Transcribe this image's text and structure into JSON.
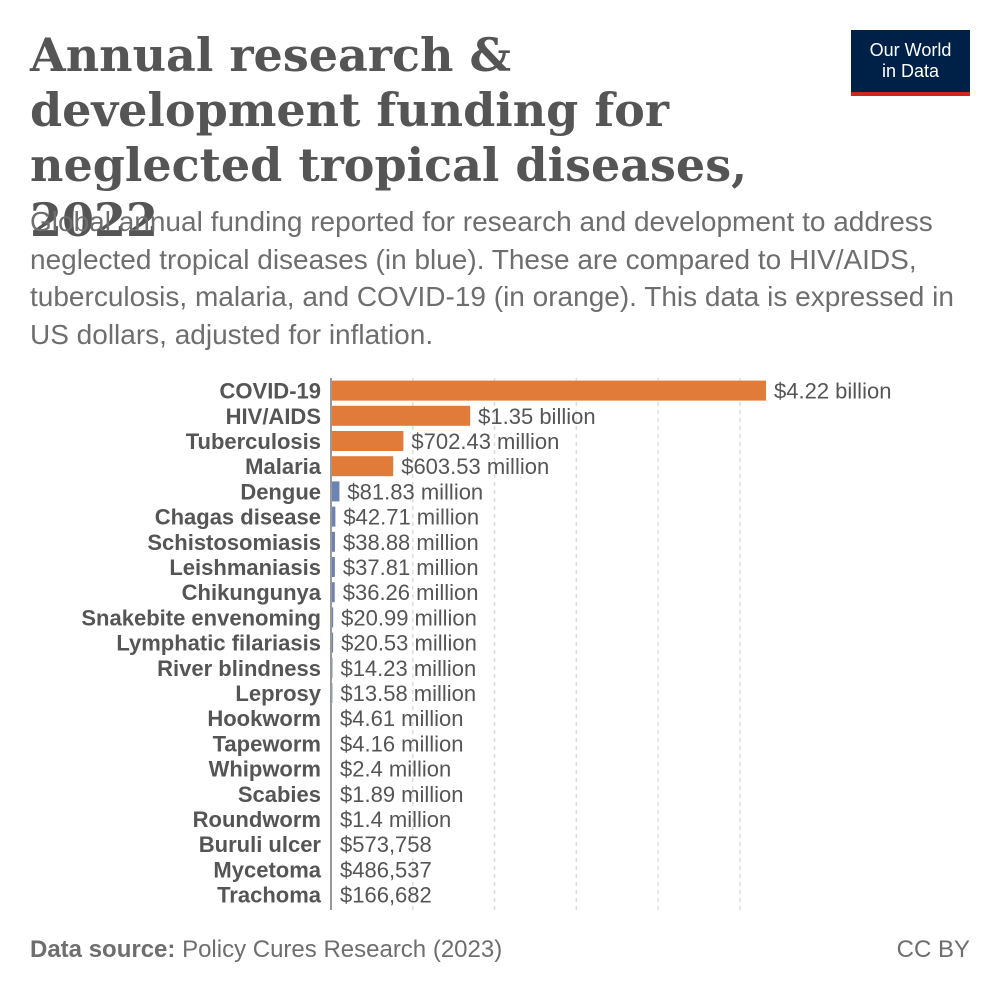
{
  "title": "Annual research & development funding for neglected tropical diseases, 2022",
  "subtitle": "Global annual funding reported for research and development to address neglected tropical diseases (in blue). These are compared to HIV/AIDS, tuberculosis, malaria, and COVID-19 (in orange). This data is expressed in US dollars, adjusted for inflation.",
  "logo": {
    "line1": "Our World",
    "line2": "in Data"
  },
  "footer": {
    "source_label": "Data source:",
    "source_text": "Policy Cures Research (2023)",
    "license": "CC BY"
  },
  "colors": {
    "comparison": "#e07b39",
    "ntd": "#6c84b5",
    "text": "#555555",
    "grid": "#dddddd"
  },
  "chart_data": {
    "type": "bar",
    "orientation": "horizontal",
    "xlim": [
      0,
      4220000000
    ],
    "grid": true,
    "categories": [
      "COVID-19",
      "HIV/AIDS",
      "Tuberculosis",
      "Malaria",
      "Dengue",
      "Chagas disease",
      "Schistosomiasis",
      "Leishmaniasis",
      "Chikungunya",
      "Snakebite envenoming",
      "Lymphatic filariasis",
      "River blindness",
      "Leprosy",
      "Hookworm",
      "Tapeworm",
      "Whipworm",
      "Scabies",
      "Roundworm",
      "Buruli ulcer",
      "Mycetoma",
      "Trachoma"
    ],
    "values": [
      4220000000,
      1350000000,
      702430000,
      603530000,
      81830000,
      42710000,
      38880000,
      37810000,
      36260000,
      20990000,
      20530000,
      14230000,
      13580000,
      4610000,
      4160000,
      2400000,
      1890000,
      1400000,
      573758,
      486537,
      166682
    ],
    "value_labels": [
      "$4.22 billion",
      "$1.35 billion",
      "$702.43 million",
      "$603.53 million",
      "$81.83 million",
      "$42.71 million",
      "$38.88 million",
      "$37.81 million",
      "$36.26 million",
      "$20.99 million",
      "$20.53 million",
      "$14.23 million",
      "$13.58 million",
      "$4.61 million",
      "$4.16 million",
      "$2.4 million",
      "$1.89 million",
      "$1.4 million",
      "$573,758",
      "$486,537",
      "$166,682"
    ],
    "groups": [
      "comparison",
      "comparison",
      "comparison",
      "comparison",
      "ntd",
      "ntd",
      "ntd",
      "ntd",
      "ntd",
      "ntd",
      "ntd",
      "ntd",
      "ntd",
      "ntd",
      "ntd",
      "ntd",
      "ntd",
      "ntd",
      "ntd",
      "ntd",
      "ntd"
    ]
  }
}
